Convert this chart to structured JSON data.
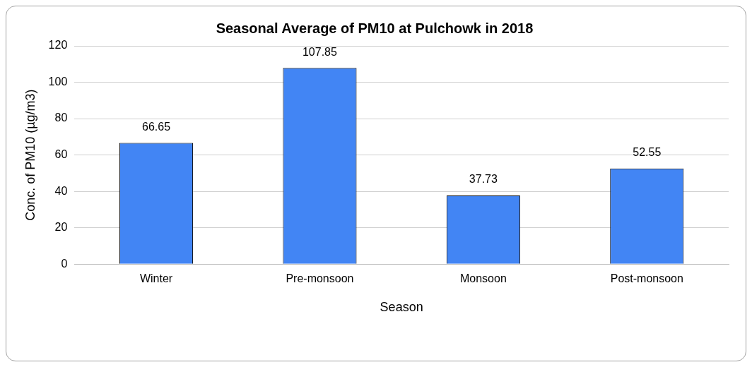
{
  "chart_data": {
    "type": "bar",
    "title": "Seasonal Average of PM10 at Pulchowk in 2018",
    "xlabel": "Season",
    "ylabel": "Conc. of PM10 (µg/m3)",
    "categories": [
      "Winter",
      "Pre-monsoon",
      "Monsoon",
      "Post-monsoon"
    ],
    "values": [
      66.65,
      107.85,
      37.73,
      52.55
    ],
    "color": "#4285f4",
    "ylim": [
      0,
      120
    ],
    "yticks": [
      0,
      20,
      40,
      60,
      80,
      100,
      120
    ],
    "grid": "y",
    "data_labels": true,
    "legend": false
  }
}
